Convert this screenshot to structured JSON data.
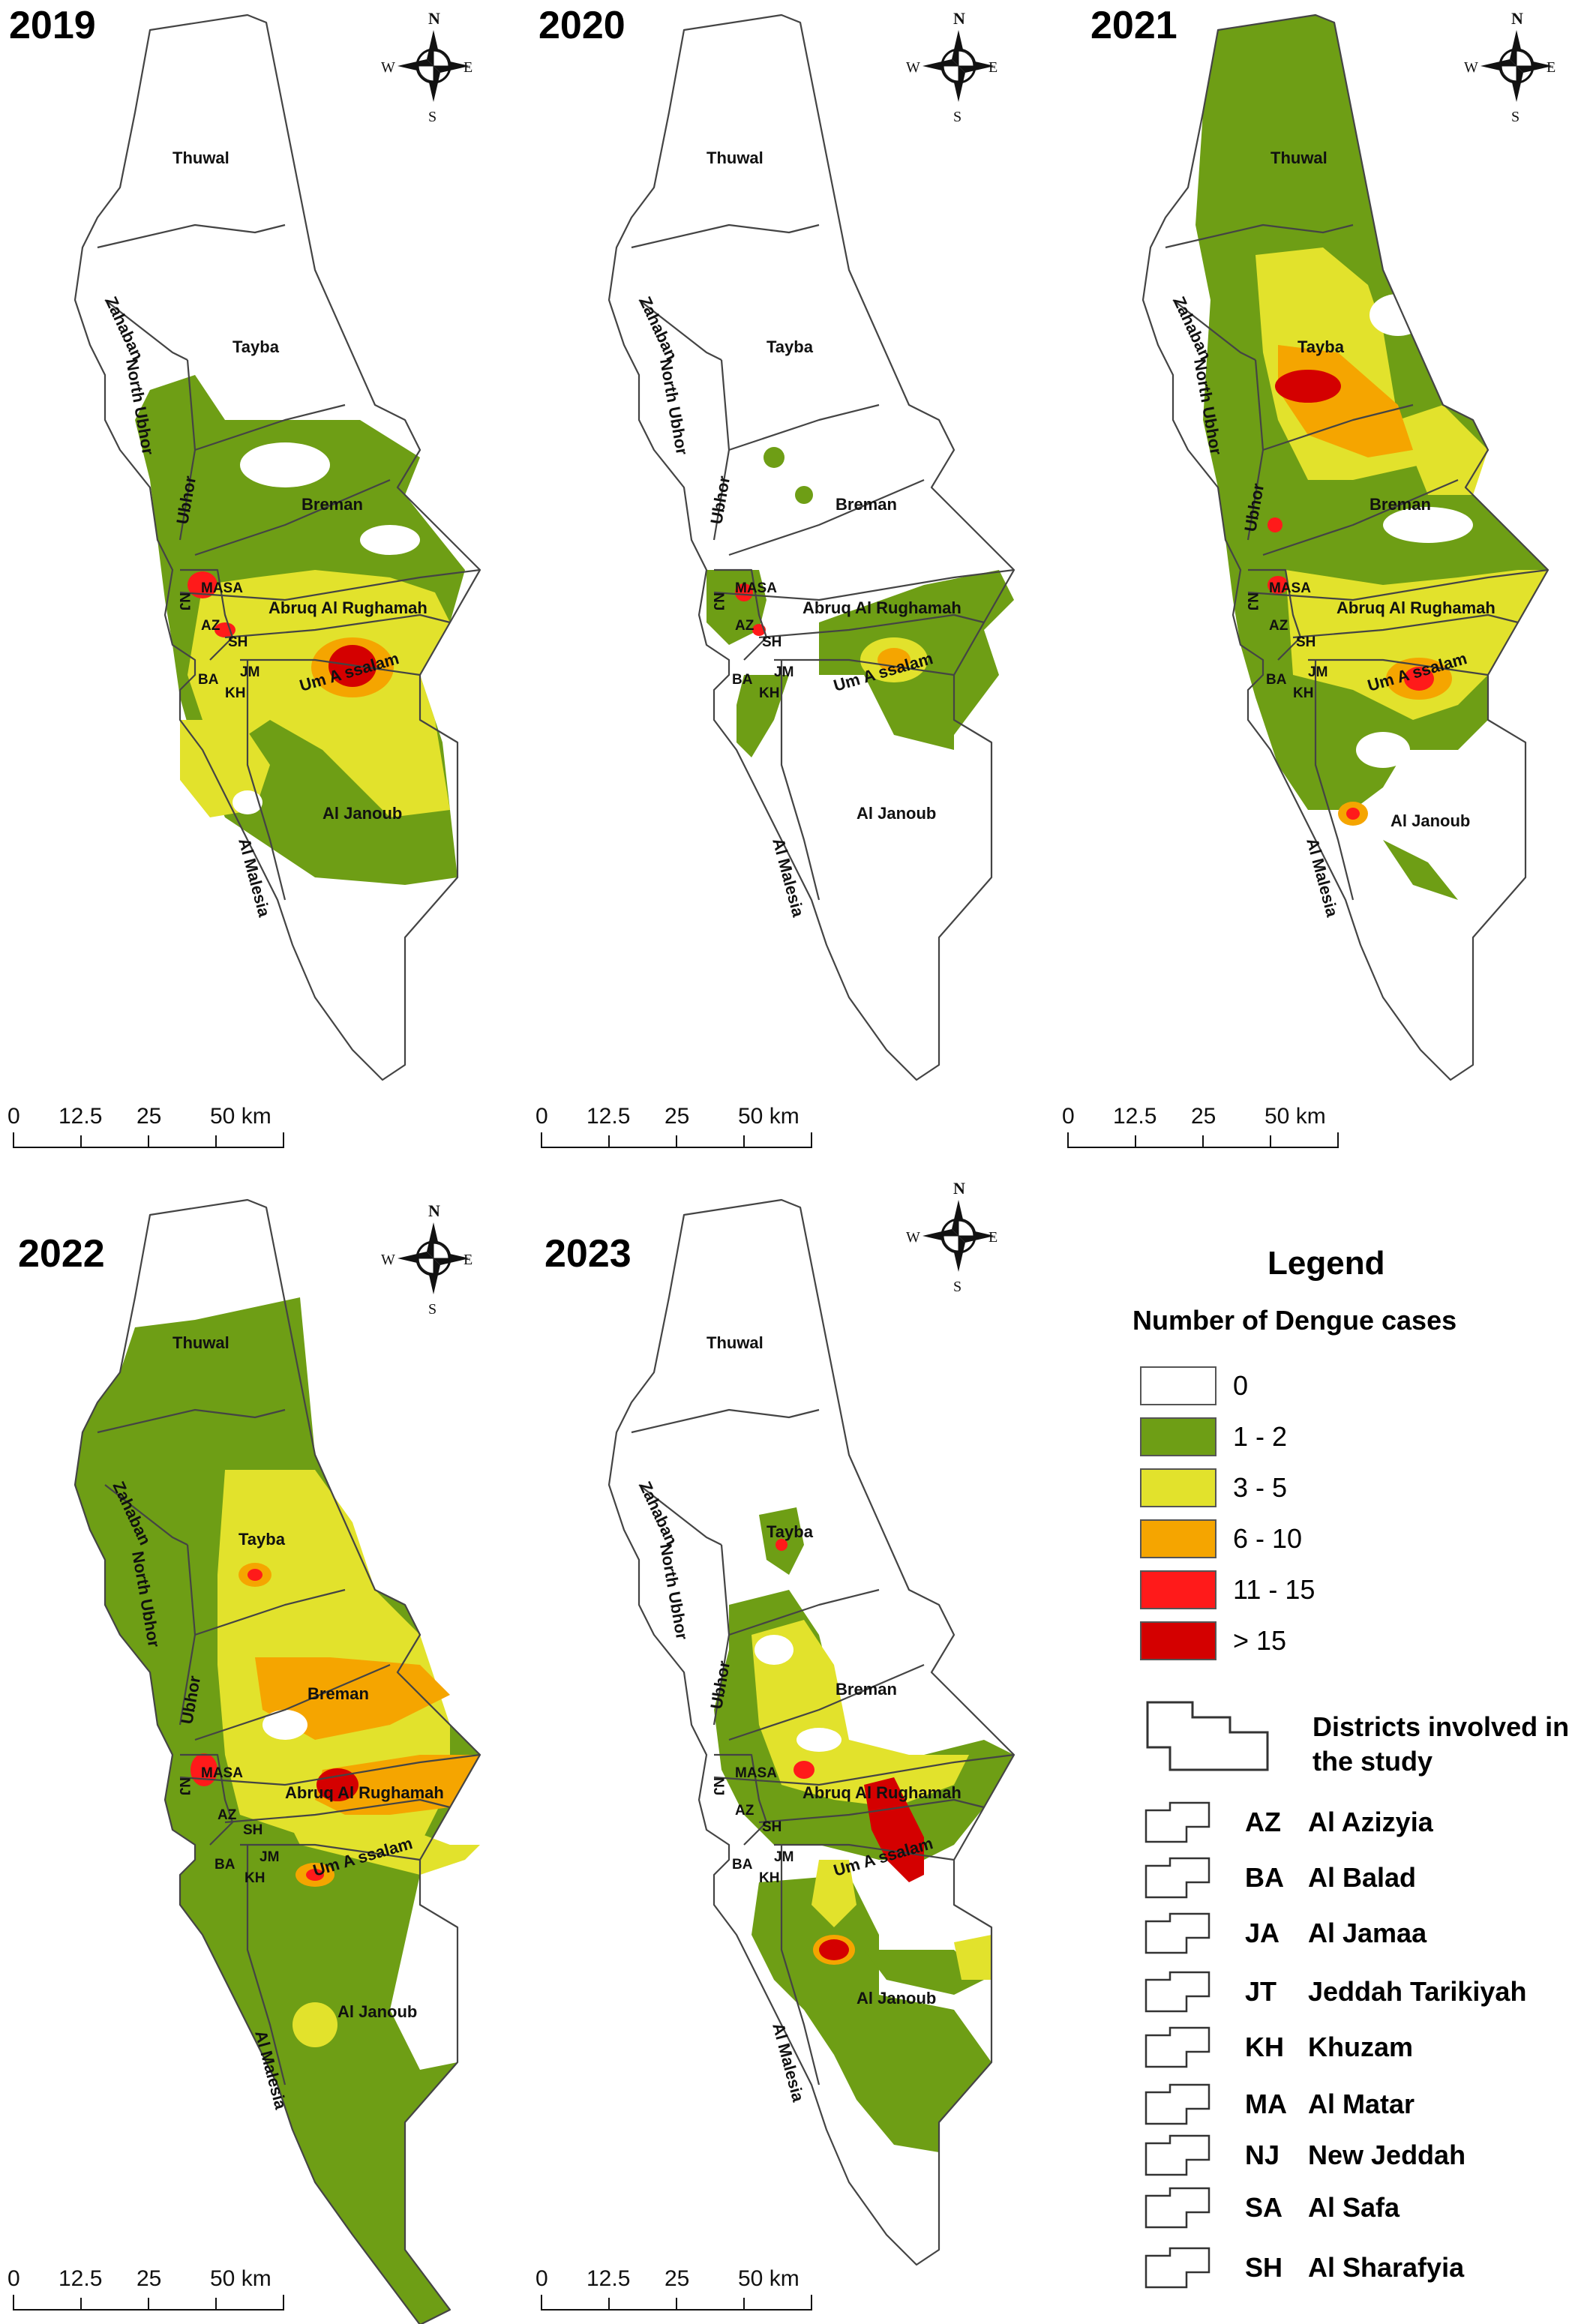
{
  "panels": [
    {
      "year": "2019"
    },
    {
      "year": "2020"
    },
    {
      "year": "2021"
    },
    {
      "year": "2022"
    },
    {
      "year": "2023"
    }
  ],
  "districts": {
    "thuwal": "Thuwal",
    "zahaban": "Zahaban",
    "tayba": "Tayba",
    "north_ubhor": "North Ubhor",
    "ubhor": "Ubhor",
    "breman": "Breman",
    "masa": "MASA",
    "nj": "NJ",
    "abruq": "Abruq Al Rughamah",
    "az": "AZ",
    "sh": "SH",
    "jm": "JM",
    "ba": "BA",
    "kh": "KH",
    "um_assalam": "Um A ssalam",
    "al_janoub": "Al Janoub",
    "al_malesia": "Al Malesia"
  },
  "compass": {
    "n": "N",
    "s": "S",
    "e": "E",
    "w": "W"
  },
  "scale_bar": {
    "ticks": [
      "0",
      "12.5",
      "25",
      "50 km"
    ]
  },
  "legend": {
    "title": "Legend",
    "subtitle": "Number of Dengue cases",
    "classes": [
      {
        "label": "0",
        "color": "#ffffff"
      },
      {
        "label": "1 - 2",
        "color": "#6e9e15"
      },
      {
        "label": "3 - 5",
        "color": "#e2e22c"
      },
      {
        "label": "6 - 10",
        "color": "#f5a500"
      },
      {
        "label": "11 - 15",
        "color": "#ff1a1a"
      },
      {
        "label": "> 15",
        "color": "#d40000"
      }
    ],
    "involved_label": "Districts involved in the study",
    "district_codes": [
      {
        "code": "AZ",
        "name": "Al Azizyia"
      },
      {
        "code": "BA",
        "name": "Al Balad"
      },
      {
        "code": "JA",
        "name": "Al Jamaa"
      },
      {
        "code": "JT",
        "name": "Jeddah Tarikiyah"
      },
      {
        "code": "KH",
        "name": "Khuzam"
      },
      {
        "code": "MA",
        "name": "Al Matar"
      },
      {
        "code": "NJ",
        "name": "New Jeddah"
      },
      {
        "code": "SA",
        "name": "Al Safa"
      },
      {
        "code": "SH",
        "name": "Al Sharafyia"
      }
    ]
  }
}
